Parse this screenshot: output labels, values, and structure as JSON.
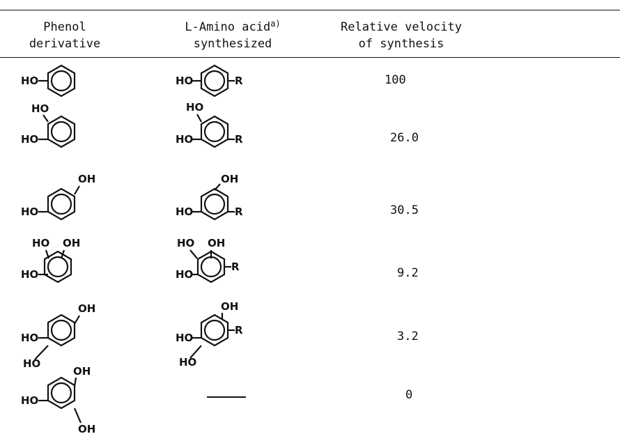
{
  "table": {
    "headers": {
      "phenol": [
        "Phenol",
        "derivative"
      ],
      "amino_acid": [
        "L-Amino acid",
        "synthesized"
      ],
      "amino_acid_footnote": "a)",
      "velocity": [
        "Relative velocity",
        "of synthesis"
      ]
    },
    "rows": [
      {
        "phenol": "phenol",
        "amino_acid": "L-tyrosine",
        "velocity": "100"
      },
      {
        "phenol": "catechol",
        "amino_acid": "L-DOPA",
        "velocity": "26.0"
      },
      {
        "phenol": "resorcinol",
        "amino_acid": "2,4-dihydroxyphenylalanine",
        "velocity": "30.5"
      },
      {
        "phenol": "pyrogallol",
        "amino_acid": "2,3,4-trihydroxyphenylalanine",
        "velocity": "9.2"
      },
      {
        "phenol": "hydroxyhydroquinone",
        "amino_acid": "2,4,5-trihydroxyphenylalanine",
        "velocity": "3.2"
      },
      {
        "phenol": "phloroglucinol",
        "amino_acid": "—",
        "velocity": "0"
      }
    ],
    "structure_labels": {
      "hydroxyl": "HO",
      "hydroxyl_right": "OH",
      "side_chain": "R"
    }
  }
}
